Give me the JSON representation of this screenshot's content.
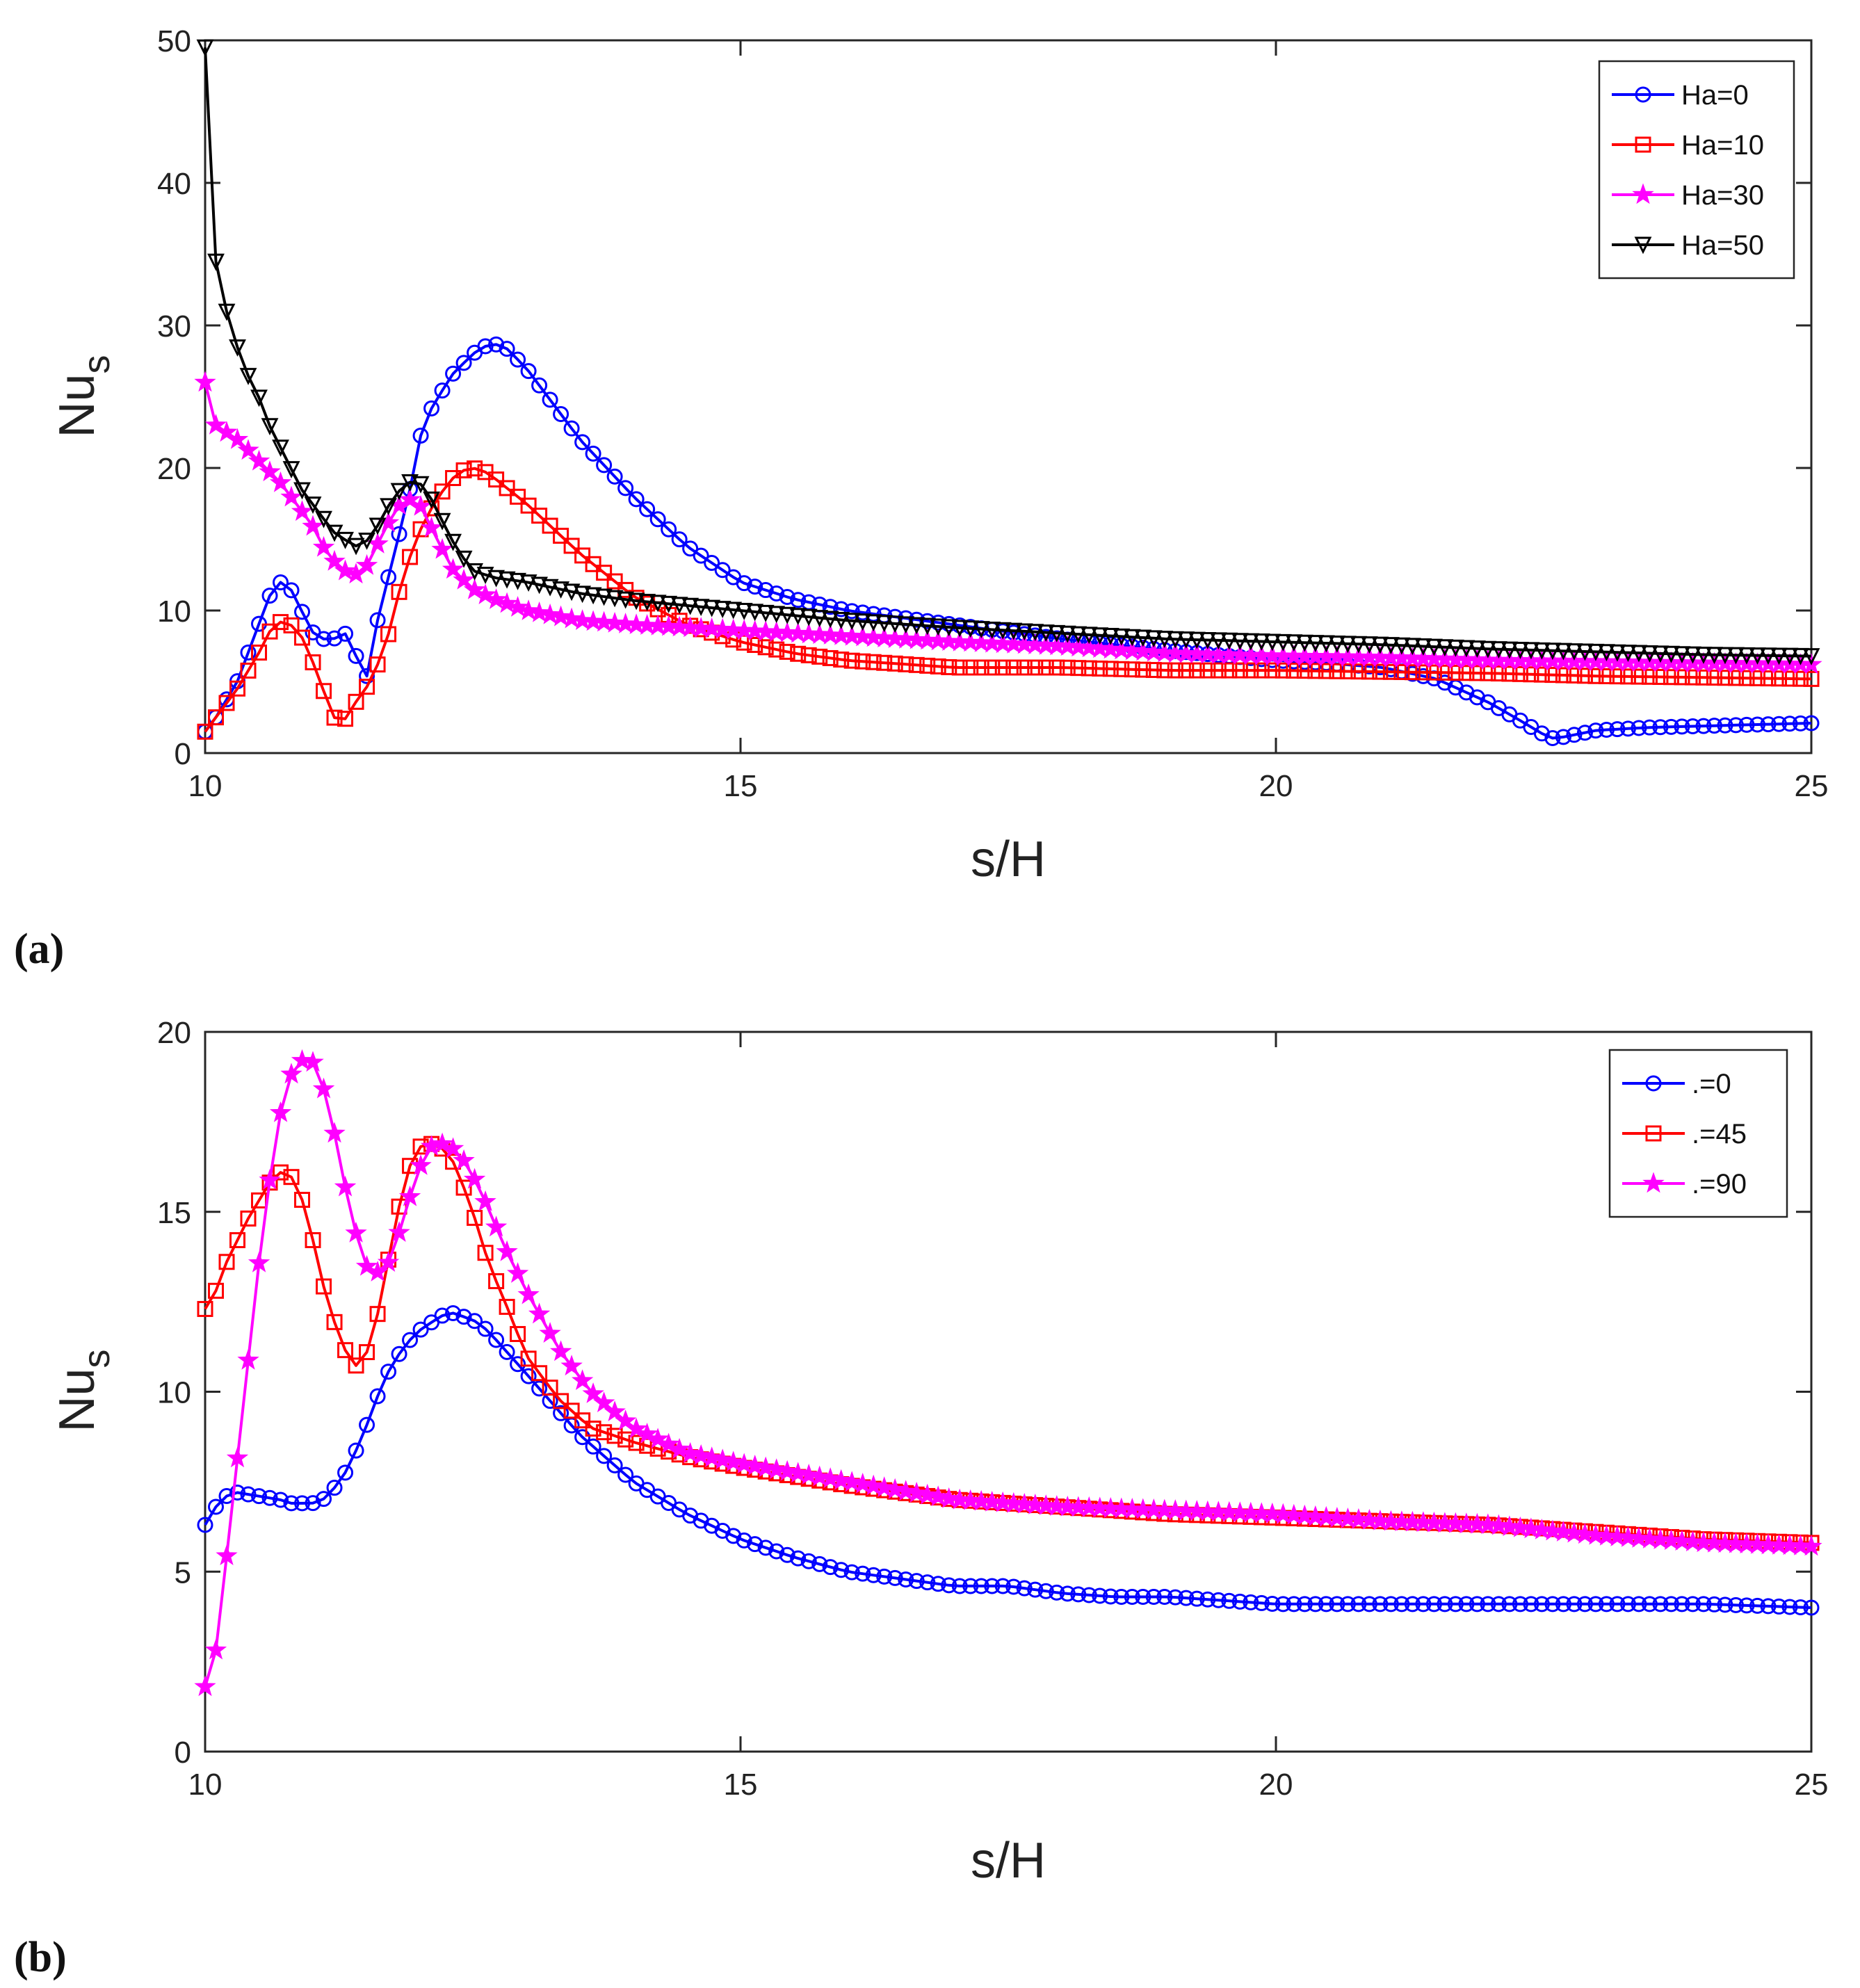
{
  "chart_data": [
    {
      "type": "line",
      "panel_label": "(a)",
      "xlabel": "s/H",
      "ylabel_main": "Nu",
      "ylabel_sub": "s",
      "xlim": [
        10,
        25
      ],
      "ylim": [
        0,
        50
      ],
      "xticks": [
        10,
        15,
        20,
        25
      ],
      "yticks": [
        0,
        10,
        20,
        30,
        40,
        50
      ],
      "legend_position": "top-right",
      "series": [
        {
          "name": "Ha=0",
          "color": "#0000ff",
          "marker": "circle",
          "x": [
            10,
            10.1,
            10.3,
            10.5,
            10.6,
            10.7,
            10.8,
            10.9,
            11.0,
            11.1,
            11.2,
            11.3,
            11.4,
            11.5,
            11.6,
            11.7,
            11.8,
            11.9,
            12.0,
            12.1,
            12.3,
            12.5,
            12.6,
            12.7,
            12.8,
            13.0,
            13.5,
            14.0,
            14.5,
            15.0,
            15.5,
            16.0,
            16.5,
            17.0,
            18.0,
            19.0,
            20.0,
            20.5,
            21.0,
            21.5,
            22.0,
            22.3,
            22.5,
            22.6,
            22.8,
            23.0,
            23.5,
            24.0,
            24.5,
            25.0
          ],
          "y": [
            1.5,
            2.5,
            5,
            9,
            11,
            12,
            11.5,
            10,
            8.5,
            8,
            8,
            8.5,
            7,
            5,
            9,
            12,
            15,
            18,
            22,
            24,
            26.5,
            28,
            28.5,
            28.7,
            28.5,
            27,
            22,
            18,
            14.5,
            12,
            10.8,
            10,
            9.5,
            9,
            8,
            7.2,
            6.5,
            6.3,
            6,
            5.2,
            3.5,
            2.2,
            1.3,
            1,
            1.3,
            1.6,
            1.8,
            1.9,
            2,
            2.1
          ]
        },
        {
          "name": "Ha=10",
          "color": "#ff0000",
          "marker": "square",
          "x": [
            10,
            10.1,
            10.3,
            10.5,
            10.6,
            10.7,
            10.8,
            10.9,
            11.0,
            11.1,
            11.2,
            11.3,
            11.4,
            11.5,
            11.6,
            11.7,
            11.8,
            11.9,
            12.0,
            12.1,
            12.2,
            12.3,
            12.4,
            12.5,
            12.6,
            12.7,
            13.0,
            13.5,
            14.0,
            14.5,
            15.0,
            15.5,
            16.0,
            17.0,
            18.0,
            19.0,
            20.0,
            21.0,
            22.0,
            23.0,
            24.0,
            25.0
          ],
          "y": [
            1.5,
            2.5,
            4.5,
            7,
            8.5,
            9.2,
            9,
            8.2,
            6.5,
            4.5,
            2.5,
            2.3,
            3.5,
            4.5,
            6,
            8,
            11,
            13.5,
            15.5,
            17,
            18.2,
            19.2,
            19.8,
            20,
            19.8,
            19.3,
            17.5,
            14,
            11,
            9,
            7.8,
            7,
            6.5,
            6,
            6,
            5.8,
            5.8,
            5.7,
            5.6,
            5.4,
            5.3,
            5.2
          ]
        },
        {
          "name": "Ha=30",
          "color": "#ff00ff",
          "marker": "star",
          "x": [
            10,
            10.1,
            10.3,
            10.5,
            10.7,
            10.9,
            11.0,
            11.1,
            11.2,
            11.3,
            11.4,
            11.5,
            11.6,
            11.7,
            11.8,
            11.9,
            12.0,
            12.1,
            12.2,
            12.3,
            12.5,
            12.7,
            13.0,
            13.5,
            14.0,
            15.0,
            16.0,
            17.0,
            18.0,
            19.0,
            20.0,
            21.0,
            22.0,
            23.0,
            24.0,
            25.0
          ],
          "y": [
            26,
            23,
            22,
            20.5,
            19,
            17,
            16,
            14.5,
            13.5,
            12.8,
            12.5,
            13,
            14.5,
            16,
            17.3,
            17.8,
            17.5,
            16,
            14.5,
            13,
            11.5,
            10.8,
            10,
            9.3,
            9,
            8.6,
            8.2,
            7.8,
            7.5,
            7,
            6.8,
            6.7,
            6.5,
            6.4,
            6.3,
            6.2
          ]
        },
        {
          "name": "Ha=50",
          "color": "#000000",
          "marker": "triangle-down",
          "x": [
            10,
            10.05,
            10.1,
            10.2,
            10.3,
            10.4,
            10.5,
            10.6,
            10.7,
            10.8,
            10.9,
            11.0,
            11.1,
            11.2,
            11.3,
            11.4,
            11.5,
            11.6,
            11.7,
            11.8,
            11.9,
            12.0,
            12.1,
            12.2,
            12.3,
            12.4,
            12.5,
            12.7,
            13.0,
            13.5,
            14.0,
            15.0,
            16.0,
            17.0,
            18.0,
            19.0,
            20.0,
            21.0,
            22.0,
            23.0,
            24.0,
            25.0
          ],
          "y": [
            49.5,
            42,
            34.5,
            31,
            28.5,
            26.5,
            25,
            23,
            21.5,
            20,
            18.5,
            17.5,
            16.5,
            15.5,
            15,
            14.5,
            14.8,
            15.8,
            17.2,
            18.3,
            19,
            19,
            18,
            16.5,
            15,
            13.8,
            12.8,
            12.3,
            12,
            11.2,
            10.7,
            10,
            9.3,
            8.8,
            8.4,
            8,
            7.8,
            7.6,
            7.3,
            7.1,
            6.9,
            6.8
          ]
        }
      ]
    },
    {
      "type": "line",
      "panel_label": "(b)",
      "xlabel": "s/H",
      "ylabel_main": "Nu",
      "ylabel_sub": "s",
      "xlim": [
        10,
        25
      ],
      "ylim": [
        0,
        20
      ],
      "xticks": [
        10,
        15,
        20,
        25
      ],
      "yticks": [
        0,
        5,
        10,
        15,
        20
      ],
      "legend_position": "top-right",
      "series": [
        {
          "name": ".=0",
          "color": "#0000ff",
          "marker": "circle",
          "x": [
            10,
            10.1,
            10.2,
            10.3,
            10.5,
            10.7,
            10.8,
            11.0,
            11.1,
            11.2,
            11.3,
            11.4,
            11.5,
            11.6,
            11.7,
            11.8,
            11.9,
            12.0,
            12.1,
            12.2,
            12.3,
            12.4,
            12.5,
            12.6,
            12.7,
            13.0,
            13.5,
            14.0,
            14.5,
            15.0,
            15.5,
            16.0,
            16.5,
            17.0,
            17.5,
            18.0,
            18.5,
            19.0,
            19.5,
            20.0,
            21.0,
            22.0,
            23.0,
            24.0,
            25.0
          ],
          "y": [
            6.3,
            6.8,
            7.1,
            7.2,
            7.1,
            7.0,
            6.9,
            6.9,
            7.0,
            7.3,
            7.7,
            8.3,
            9,
            9.8,
            10.5,
            11,
            11.4,
            11.7,
            11.9,
            12.1,
            12.2,
            12.1,
            12,
            11.8,
            11.5,
            10.5,
            8.8,
            7.5,
            6.6,
            5.9,
            5.4,
            5,
            4.8,
            4.6,
            4.6,
            4.4,
            4.3,
            4.3,
            4.2,
            4.1,
            4.1,
            4.1,
            4.1,
            4.1,
            4.0
          ]
        },
        {
          "name": ".=45",
          "color": "#ff0000",
          "marker": "square",
          "x": [
            10,
            10.1,
            10.2,
            10.3,
            10.4,
            10.5,
            10.6,
            10.7,
            10.8,
            10.9,
            11.0,
            11.1,
            11.2,
            11.3,
            11.4,
            11.5,
            11.6,
            11.7,
            11.8,
            11.9,
            12.0,
            12.1,
            12.2,
            12.3,
            12.4,
            12.5,
            12.6,
            12.7,
            12.8,
            13.0,
            13.3,
            13.6,
            14.0,
            14.5,
            15.0,
            16.0,
            17.0,
            18.0,
            19.0,
            20.0,
            21.0,
            22.0,
            23.0,
            24.0,
            25.0
          ],
          "y": [
            12.3,
            12.8,
            13.6,
            14.2,
            14.8,
            15.3,
            15.8,
            16.1,
            16.0,
            15.4,
            14.3,
            13,
            12,
            11.2,
            10.7,
            11,
            12,
            13.5,
            15,
            16.2,
            16.8,
            16.9,
            16.8,
            16.5,
            15.8,
            15,
            14,
            13.2,
            12.5,
            11,
            9.8,
            9,
            8.6,
            8.2,
            7.9,
            7.4,
            7,
            6.8,
            6.6,
            6.5,
            6.4,
            6.3,
            6.1,
            5.9,
            5.8
          ]
        },
        {
          "name": ".=90",
          "color": "#ff00ff",
          "marker": "star",
          "x": [
            10,
            10.1,
            10.2,
            10.3,
            10.4,
            10.5,
            10.6,
            10.7,
            10.8,
            10.9,
            11.0,
            11.1,
            11.2,
            11.3,
            11.4,
            11.5,
            11.6,
            11.7,
            11.8,
            11.9,
            12.0,
            12.1,
            12.2,
            12.3,
            12.4,
            12.5,
            12.6,
            12.7,
            12.8,
            13.0,
            13.3,
            13.6,
            14.0,
            14.5,
            15.0,
            16.0,
            17.0,
            18.0,
            19.0,
            20.0,
            21.0,
            22.0,
            23.0,
            24.0,
            25.0
          ],
          "y": [
            1.8,
            2.8,
            5.4,
            8.1,
            10.8,
            13.5,
            15.8,
            17.7,
            18.8,
            19.2,
            19.2,
            18.5,
            17.3,
            15.8,
            14.5,
            13.5,
            13.3,
            13.5,
            14.3,
            15.3,
            16.2,
            16.8,
            16.9,
            16.8,
            16.5,
            16,
            15.4,
            14.7,
            14,
            12.8,
            11.2,
            10,
            9,
            8.3,
            8,
            7.5,
            7,
            6.8,
            6.7,
            6.6,
            6.4,
            6.3,
            6,
            5.8,
            5.7
          ]
        }
      ]
    }
  ],
  "colors": {
    "axis": "#262626",
    "grid": "none",
    "background": "#ffffff"
  }
}
